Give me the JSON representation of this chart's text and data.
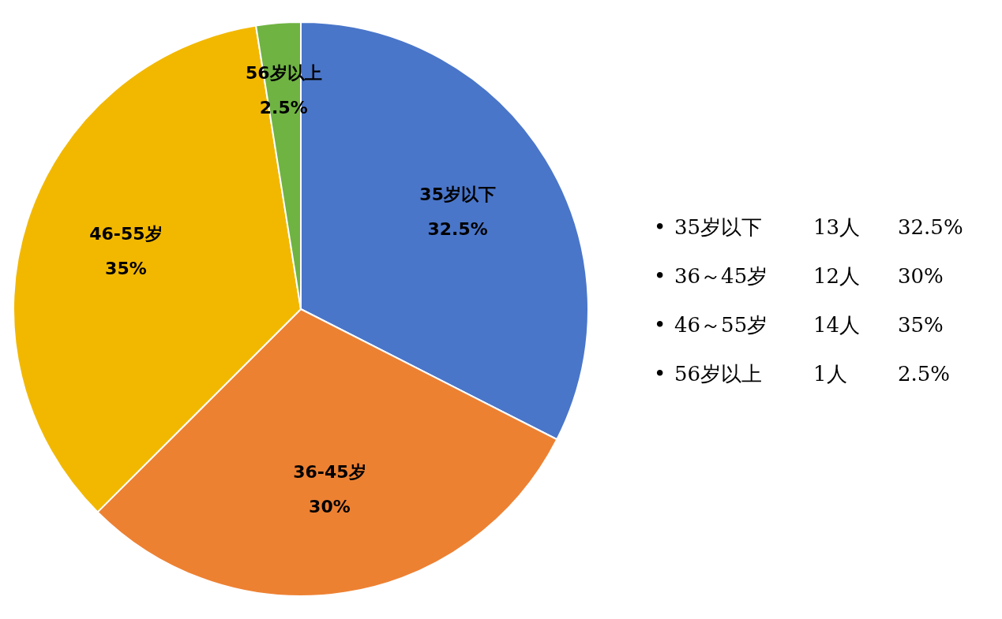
{
  "chart_data": {
    "type": "pie",
    "categories": [
      "35岁以下",
      "36-45岁",
      "46-55岁",
      "56岁以上"
    ],
    "values": [
      32.5,
      30,
      35,
      2.5
    ],
    "value_labels": [
      "32.5%",
      "30%",
      "35%",
      "2.5%"
    ],
    "colors": [
      "#4a76c9",
      "#ed8132",
      "#f2b800",
      "#6fb343"
    ],
    "annotations": [
      "•\t35岁以下\t13人\t32.5%",
      "•\t36～45岁\t12人\t30%",
      "•\t46～55岁\t14人\t35%",
      "•\t56岁以上\t1人\t2.5%"
    ]
  }
}
